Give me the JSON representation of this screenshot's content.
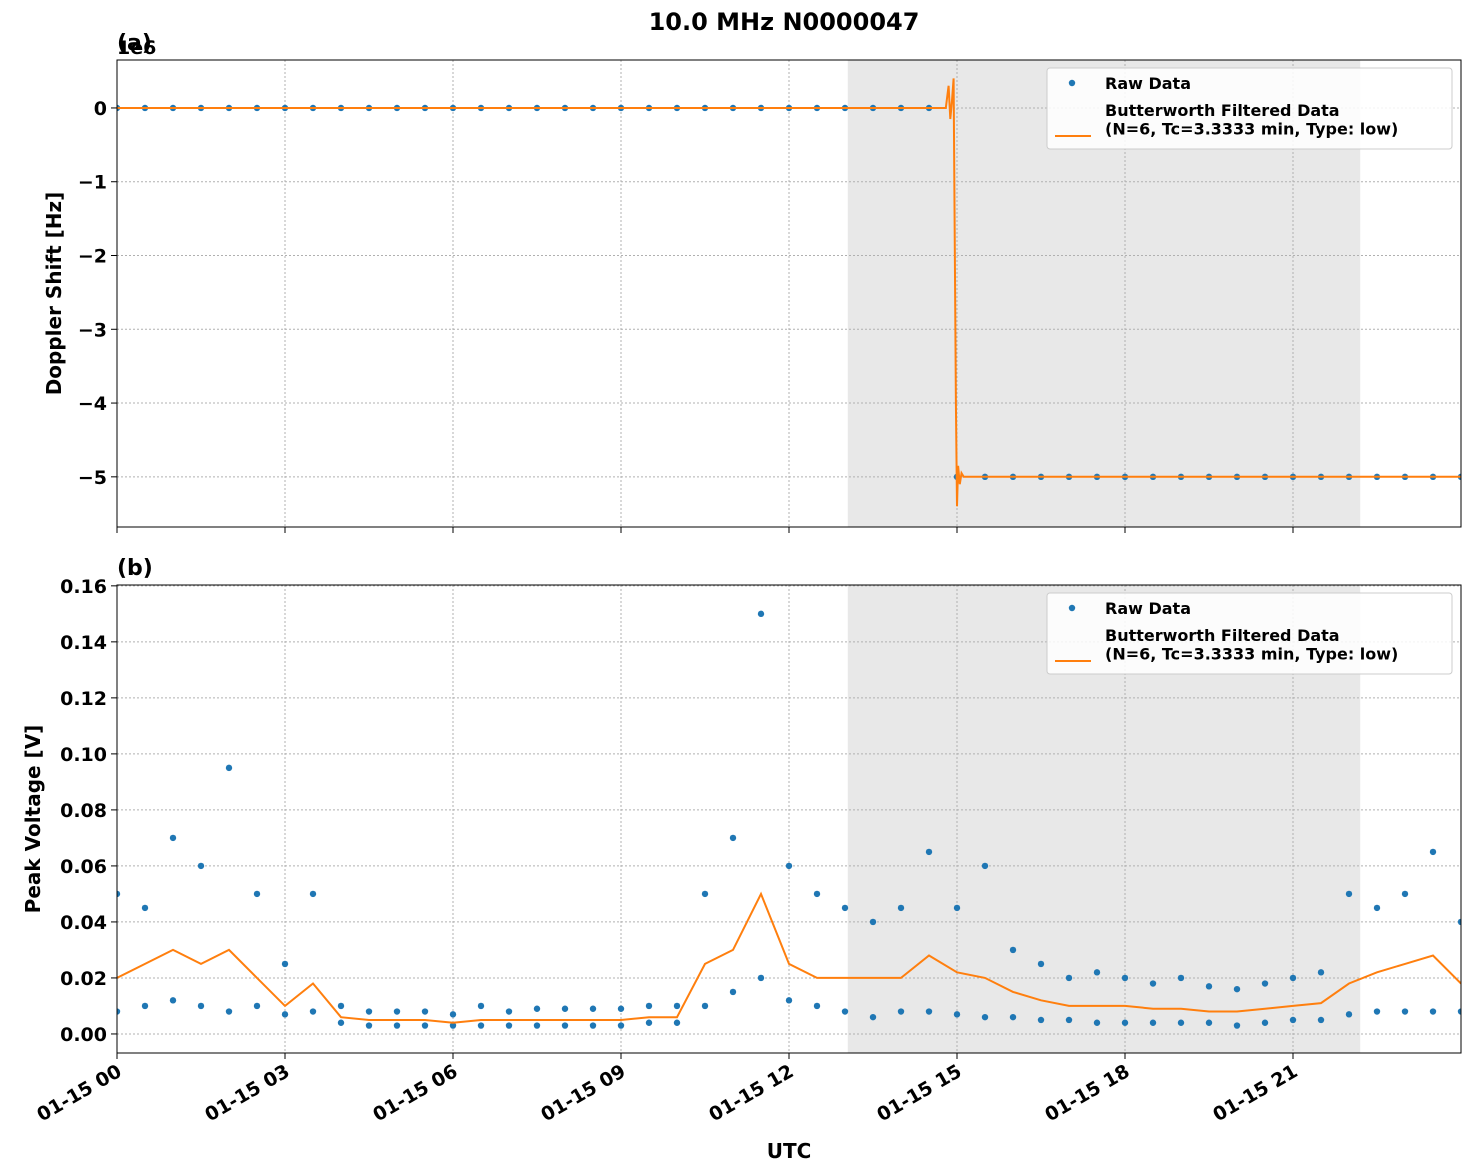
{
  "title": "10.0 MHz N0000047",
  "chart_data": [
    {
      "type": "scatter_line",
      "panel_label": "(a)",
      "ylabel": "Doppler Shift [Hz]",
      "offset_text": "1e6",
      "xlim": [
        0,
        24
      ],
      "ylim": [
        -5680000,
        650000
      ],
      "xticks": [
        0,
        3,
        6,
        9,
        12,
        15,
        18,
        21
      ],
      "yticks": [
        0,
        {
          "value": -1000000,
          "label": "−1"
        },
        {
          "value": -2000000,
          "label": "−2"
        },
        {
          "value": -3000000,
          "label": "−3"
        },
        {
          "value": -4000000,
          "label": "−4"
        },
        {
          "value": -5000000,
          "label": "−5"
        }
      ],
      "grid": true,
      "legend": "upper right",
      "shaded_span": [
        13.05,
        22.2
      ],
      "series": [
        {
          "name": "Raw Data",
          "color": "#1f77b4",
          "style": "points",
          "x": [
            0,
            0.5,
            1,
            1.5,
            2,
            2.5,
            3,
            3.5,
            4,
            4.5,
            5,
            5.5,
            6,
            6.5,
            7,
            7.5,
            8,
            8.5,
            9,
            9.5,
            10,
            10.5,
            11,
            11.5,
            12,
            12.5,
            13,
            13.5,
            14,
            14.5,
            15,
            15.5,
            16,
            16.5,
            17,
            17.5,
            18,
            18.5,
            19,
            19.5,
            20,
            20.5,
            21,
            21.5,
            22,
            22.5,
            23,
            23.5,
            24
          ],
          "values": [
            0,
            0,
            0,
            0,
            0,
            0,
            0,
            0,
            0,
            0,
            0,
            0,
            0,
            0,
            0,
            0,
            0,
            0,
            0,
            0,
            0,
            0,
            0,
            0,
            0,
            0,
            0,
            0,
            0,
            0,
            -5000000,
            -5000000,
            -5000000,
            -5000000,
            -5000000,
            -5000000,
            -5000000,
            -5000000,
            -5000000,
            -5000000,
            -5000000,
            -5000000,
            -5000000,
            -5000000,
            -5000000,
            -5000000,
            -5000000,
            -5000000,
            -5000000
          ]
        },
        {
          "name": "Butterworth Filtered Data\n(N=6, Tc=3.3333 min, Type: low)",
          "color": "#ff7f0e",
          "style": "line",
          "x": [
            0,
            14.8,
            14.85,
            14.88,
            14.91,
            14.94,
            14.98,
            15.0,
            15.02,
            15.05,
            15.08,
            15.12,
            24
          ],
          "values": [
            0,
            0,
            300000,
            -150000,
            100000,
            400000,
            -4000000,
            -5400000,
            -4850000,
            -5100000,
            -4950000,
            -5000000,
            -5000000
          ]
        }
      ]
    },
    {
      "type": "scatter_line",
      "panel_label": "(b)",
      "ylabel": "Peak Voltage [V]",
      "xlabel": "UTC",
      "xlim": [
        0,
        24
      ],
      "ylim": [
        -0.0068,
        0.1603
      ],
      "xticks": [
        {
          "value": 0,
          "label": "01-15 00"
        },
        {
          "value": 3,
          "label": "01-15 03"
        },
        {
          "value": 6,
          "label": "01-15 06"
        },
        {
          "value": 9,
          "label": "01-15 09"
        },
        {
          "value": 12,
          "label": "01-15 12"
        },
        {
          "value": 15,
          "label": "01-15 15"
        },
        {
          "value": 18,
          "label": "01-15 18"
        },
        {
          "value": 21,
          "label": "01-15 21"
        }
      ],
      "yticks": [
        {
          "value": 0,
          "label": "0.00"
        },
        {
          "value": 0.02,
          "label": "0.02"
        },
        {
          "value": 0.04,
          "label": "0.04"
        },
        {
          "value": 0.06,
          "label": "0.06"
        },
        {
          "value": 0.08,
          "label": "0.08"
        },
        {
          "value": 0.1,
          "label": "0.10"
        },
        {
          "value": 0.12,
          "label": "0.12"
        },
        {
          "value": 0.14,
          "label": "0.14"
        },
        {
          "value": 0.16,
          "label": "0.16"
        }
      ],
      "grid": true,
      "legend": "upper right",
      "shaded_span": [
        13.05,
        22.2
      ],
      "series": [
        {
          "name": "Raw Data",
          "color": "#1f77b4",
          "style": "points",
          "x": [
            0,
            0,
            0.5,
            0.5,
            1,
            1,
            1.5,
            1.5,
            2,
            2,
            2.5,
            2.5,
            3,
            3,
            3.5,
            3.5,
            4,
            4,
            4.5,
            4.5,
            5,
            5,
            5.5,
            5.5,
            6,
            6,
            6.5,
            6.5,
            7,
            7,
            7.5,
            7.5,
            8,
            8,
            8.5,
            8.5,
            9,
            9,
            9.5,
            9.5,
            10,
            10,
            10.5,
            10.5,
            11,
            11,
            11.5,
            11.5,
            12,
            12,
            12.5,
            12.5,
            13,
            13,
            13.5,
            13.5,
            14,
            14,
            14.5,
            14.5,
            15,
            15,
            15.5,
            15.5,
            16,
            16,
            16.5,
            16.5,
            17,
            17,
            17.5,
            17.5,
            18,
            18,
            18.5,
            18.5,
            19,
            19,
            19.5,
            19.5,
            20,
            20,
            20.5,
            20.5,
            21,
            21,
            21.5,
            21.5,
            22,
            22,
            22.5,
            22.5,
            23,
            23,
            23.5,
            23.5,
            24,
            24
          ],
          "values": [
            0.008,
            0.05,
            0.01,
            0.045,
            0.012,
            0.07,
            0.01,
            0.06,
            0.008,
            0.095,
            0.01,
            0.05,
            0.007,
            0.025,
            0.008,
            0.05,
            0.004,
            0.01,
            0.003,
            0.008,
            0.003,
            0.008,
            0.003,
            0.008,
            0.003,
            0.007,
            0.003,
            0.01,
            0.003,
            0.008,
            0.003,
            0.009,
            0.003,
            0.009,
            0.003,
            0.009,
            0.003,
            0.009,
            0.004,
            0.01,
            0.004,
            0.01,
            0.01,
            0.05,
            0.015,
            0.07,
            0.02,
            0.15,
            0.012,
            0.06,
            0.01,
            0.05,
            0.008,
            0.045,
            0.006,
            0.04,
            0.008,
            0.045,
            0.008,
            0.065,
            0.007,
            0.045,
            0.006,
            0.06,
            0.006,
            0.03,
            0.005,
            0.025,
            0.005,
            0.02,
            0.004,
            0.022,
            0.004,
            0.02,
            0.004,
            0.018,
            0.004,
            0.02,
            0.004,
            0.017,
            0.003,
            0.016,
            0.004,
            0.018,
            0.005,
            0.02,
            0.005,
            0.022,
            0.007,
            0.05,
            0.008,
            0.045,
            0.008,
            0.05,
            0.008,
            0.065,
            0.008,
            0.04
          ]
        },
        {
          "name": "Butterworth Filtered Data\n(N=6, Tc=3.3333 min, Type: low)",
          "color": "#ff7f0e",
          "style": "line",
          "x": [
            0,
            0.5,
            1,
            1.5,
            2,
            2.5,
            3,
            3.5,
            4,
            4.5,
            5,
            5.5,
            6,
            6.5,
            7,
            7.5,
            8,
            8.5,
            9,
            9.5,
            10,
            10.5,
            11,
            11.5,
            12,
            12.5,
            13,
            13.5,
            14,
            14.5,
            15,
            15.5,
            16,
            16.5,
            17,
            17.5,
            18,
            18.5,
            19,
            19.5,
            20,
            20.5,
            21,
            21.5,
            22,
            22.5,
            23,
            23.5,
            24
          ],
          "values": [
            0.02,
            0.025,
            0.03,
            0.025,
            0.03,
            0.02,
            0.01,
            0.018,
            0.006,
            0.005,
            0.005,
            0.005,
            0.004,
            0.005,
            0.005,
            0.005,
            0.005,
            0.005,
            0.005,
            0.006,
            0.006,
            0.025,
            0.03,
            0.05,
            0.025,
            0.02,
            0.02,
            0.02,
            0.02,
            0.028,
            0.022,
            0.02,
            0.015,
            0.012,
            0.01,
            0.01,
            0.01,
            0.009,
            0.009,
            0.008,
            0.008,
            0.009,
            0.01,
            0.011,
            0.018,
            0.022,
            0.025,
            0.028,
            0.018
          ]
        }
      ]
    }
  ]
}
